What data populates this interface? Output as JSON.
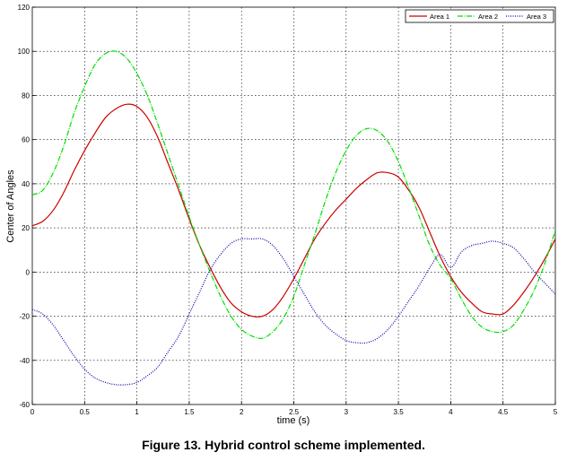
{
  "caption": "Figure 13. Hybrid control scheme implemented.",
  "chart_data": {
    "type": "line",
    "xlabel": "time (s)",
    "ylabel": "Center of Angles",
    "xlim": [
      0,
      5
    ],
    "ylim": [
      -60,
      120
    ],
    "xticks": [
      0,
      0.5,
      1,
      1.5,
      2,
      2.5,
      3,
      3.5,
      4,
      4.5,
      5
    ],
    "xtick_labels": [
      "0",
      "0.5",
      "1",
      "1.5",
      "2",
      "2.5",
      "3",
      "3.5",
      "4",
      "4.5",
      "5"
    ],
    "yticks": [
      -60,
      -40,
      -20,
      0,
      20,
      40,
      60,
      80,
      100,
      120
    ],
    "ytick_labels": [
      "-60",
      "-40",
      "-20",
      "0",
      "20",
      "40",
      "60",
      "80",
      "100",
      "120"
    ],
    "grid": true,
    "legend_position": "top-right",
    "series": [
      {
        "name": "Area 1",
        "color": "#cc0000",
        "line_style": "solid",
        "x": [
          0,
          0.1,
          0.2,
          0.3,
          0.4,
          0.5,
          0.6,
          0.7,
          0.8,
          0.9,
          1.0,
          1.1,
          1.2,
          1.3,
          1.4,
          1.5,
          1.6,
          1.7,
          1.8,
          1.9,
          2.0,
          2.1,
          2.2,
          2.3,
          2.4,
          2.5,
          2.6,
          2.7,
          2.8,
          2.9,
          3.0,
          3.1,
          3.2,
          3.3,
          3.4,
          3.5,
          3.6,
          3.7,
          3.8,
          3.9,
          4.0,
          4.1,
          4.2,
          4.3,
          4.4,
          4.5,
          4.6,
          4.7,
          4.8,
          4.9,
          5.0
        ],
        "values": [
          21,
          23,
          28,
          36,
          46,
          55,
          63,
          70,
          74,
          76,
          75,
          70,
          61,
          49,
          37,
          24,
          12,
          2,
          -7,
          -14,
          -18,
          -20,
          -20,
          -17,
          -11,
          -3,
          6,
          15,
          22,
          28,
          33,
          38,
          42,
          45,
          45,
          43,
          37,
          29,
          18,
          7,
          -2,
          -9,
          -14,
          -18,
          -19,
          -19,
          -15,
          -9,
          -2,
          6,
          15
        ]
      },
      {
        "name": "Area 2",
        "color": "#00dd00",
        "line_style": "dash-dot",
        "x": [
          0,
          0.1,
          0.2,
          0.3,
          0.4,
          0.5,
          0.6,
          0.7,
          0.8,
          0.9,
          1.0,
          1.1,
          1.2,
          1.3,
          1.4,
          1.5,
          1.6,
          1.7,
          1.8,
          1.9,
          2.0,
          2.1,
          2.2,
          2.3,
          2.4,
          2.5,
          2.6,
          2.7,
          2.8,
          2.9,
          3.0,
          3.1,
          3.2,
          3.3,
          3.4,
          3.5,
          3.6,
          3.7,
          3.8,
          3.9,
          4.0,
          4.1,
          4.2,
          4.3,
          4.4,
          4.5,
          4.6,
          4.7,
          4.8,
          4.9,
          5.0
        ],
        "values": [
          35,
          37,
          45,
          57,
          72,
          84,
          94,
          99,
          100,
          97,
          90,
          80,
          67,
          53,
          39,
          25,
          12,
          0,
          -11,
          -20,
          -26,
          -29,
          -30,
          -27,
          -21,
          -11,
          3,
          17,
          32,
          45,
          55,
          62,
          65,
          64,
          59,
          50,
          38,
          25,
          12,
          3,
          -3,
          -12,
          -20,
          -25,
          -27,
          -27,
          -24,
          -17,
          -8,
          4,
          19
        ]
      },
      {
        "name": "Area 3",
        "color": "#0000aa",
        "line_style": "dotted",
        "x": [
          0,
          0.1,
          0.2,
          0.3,
          0.4,
          0.5,
          0.6,
          0.7,
          0.8,
          0.9,
          1.0,
          1.1,
          1.2,
          1.3,
          1.4,
          1.5,
          1.6,
          1.7,
          1.8,
          1.9,
          2.0,
          2.1,
          2.2,
          2.3,
          2.4,
          2.5,
          2.6,
          2.7,
          2.8,
          2.9,
          3.0,
          3.1,
          3.2,
          3.3,
          3.4,
          3.5,
          3.6,
          3.7,
          3.8,
          3.9,
          4.0,
          4.1,
          4.2,
          4.3,
          4.4,
          4.5,
          4.6,
          4.7,
          4.8,
          4.9,
          5.0
        ],
        "values": [
          -17,
          -19,
          -24,
          -31,
          -38,
          -44,
          -48,
          -50,
          -51,
          -51,
          -50,
          -47,
          -43,
          -36,
          -29,
          -19,
          -9,
          1,
          8,
          13,
          15,
          15,
          15,
          12,
          6,
          -2,
          -10,
          -18,
          -24,
          -28,
          -31,
          -32,
          -32,
          -30,
          -26,
          -20,
          -13,
          -6,
          2,
          8,
          2,
          9,
          12,
          13,
          14,
          13,
          11,
          6,
          0,
          -5,
          -10
        ]
      }
    ]
  }
}
